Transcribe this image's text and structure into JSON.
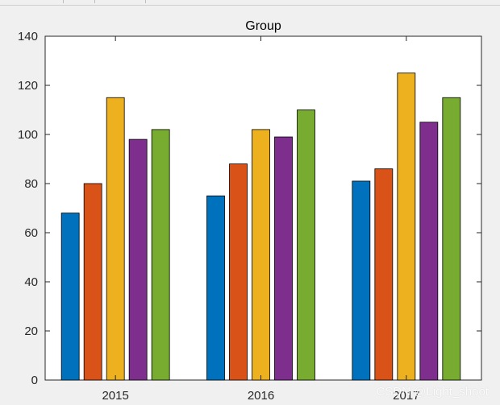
{
  "chart_data": {
    "type": "bar",
    "title": "Group",
    "xlabel": "",
    "ylabel": "",
    "categories": [
      "2015",
      "2016",
      "2017"
    ],
    "ylim": [
      0,
      140
    ],
    "yticks": [
      0,
      20,
      40,
      60,
      80,
      100,
      120,
      140
    ],
    "grid": false,
    "series": [
      {
        "values": [
          68,
          75,
          81
        ],
        "color": "#0072BD"
      },
      {
        "values": [
          80,
          88,
          86
        ],
        "color": "#D95319"
      },
      {
        "values": [
          115,
          102,
          125
        ],
        "color": "#EDB120"
      },
      {
        "values": [
          98,
          99,
          105
        ],
        "color": "#7E2F8E"
      },
      {
        "values": [
          102,
          110,
          115
        ],
        "color": "#77AC30"
      }
    ]
  },
  "watermark": "CSDN @Light_shoot",
  "colors": {
    "figure_background": "#f0f0f0",
    "axes_background": "#ffffff",
    "axis_line": "#262626"
  }
}
